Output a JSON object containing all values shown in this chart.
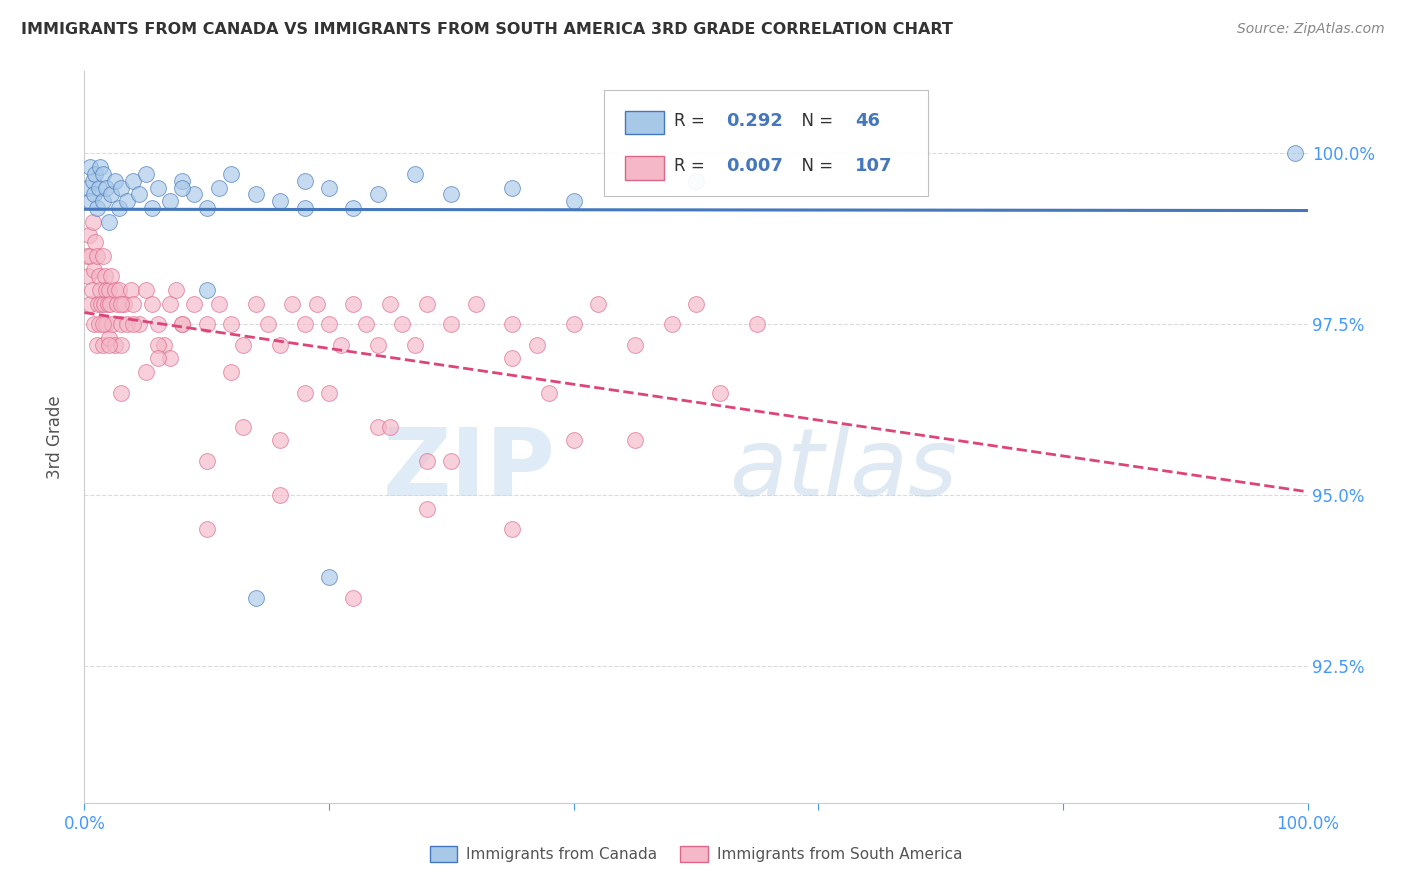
{
  "title": "IMMIGRANTS FROM CANADA VS IMMIGRANTS FROM SOUTH AMERICA 3RD GRADE CORRELATION CHART",
  "source": "Source: ZipAtlas.com",
  "ylabel": "3rd Grade",
  "xlim": [
    0.0,
    100.0
  ],
  "ylim": [
    90.5,
    101.2
  ],
  "canada_R": 0.292,
  "canada_N": 46,
  "southam_R": 0.007,
  "southam_N": 107,
  "canada_color": "#a8c8e8",
  "southam_color": "#f4b8c8",
  "trend_canada_color": "#4477bb",
  "trend_southam_color": "#dd4477",
  "legend_label_canada": "Immigrants from Canada",
  "legend_label_southam": "Immigrants from South America",
  "watermark_zip": "ZIP",
  "watermark_atlas": "atlas",
  "background_color": "#ffffff",
  "grid_color": "#cccccc",
  "title_color": "#333333",
  "axis_tick_color": "#4499ff",
  "right_ytick_color": "#4499ff",
  "ytick_vals": [
    92.5,
    95.0,
    97.5,
    100.0
  ]
}
